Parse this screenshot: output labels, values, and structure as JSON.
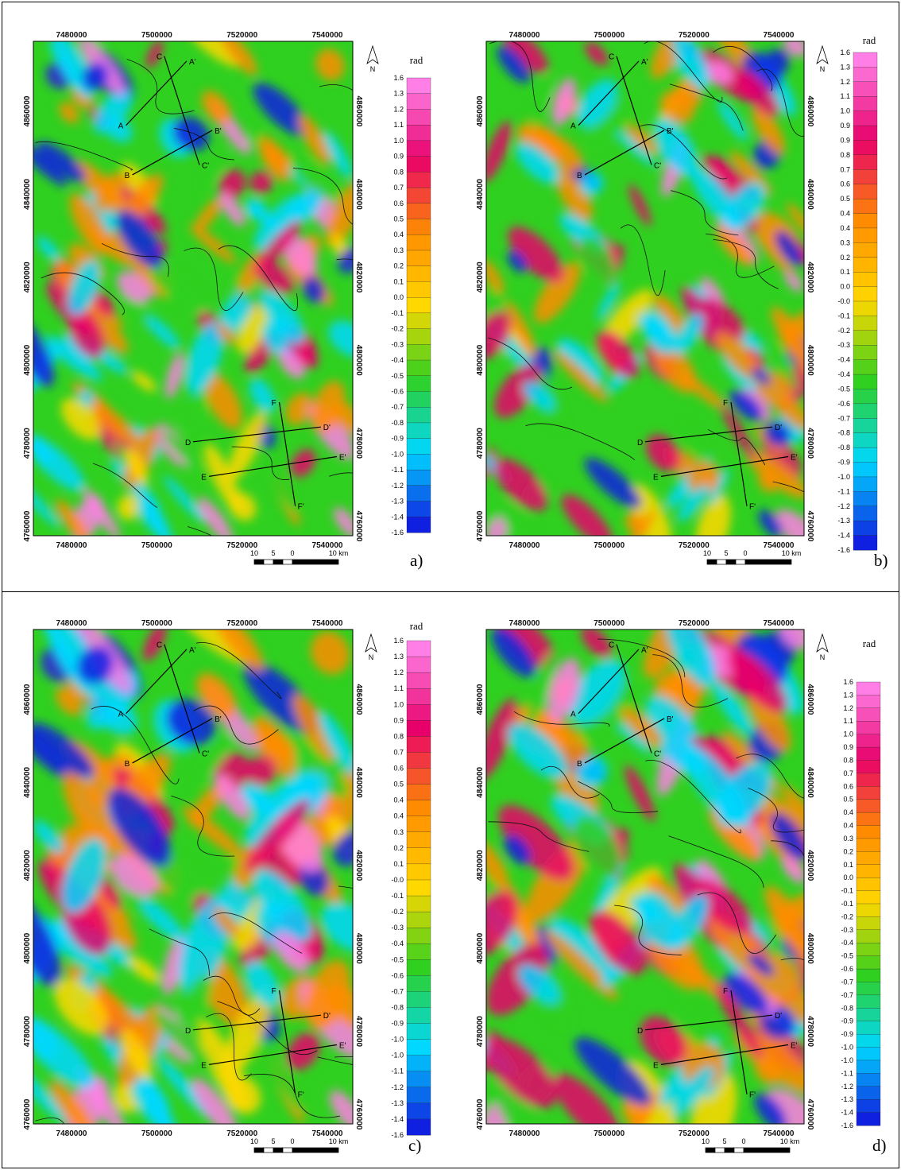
{
  "figure": {
    "panels": [
      {
        "letter": "a)",
        "legend_labels": [
          "1.6",
          "1.3",
          "1.2",
          "1.1",
          "1.0",
          "0.9",
          "0.8",
          "0.7",
          "0.6",
          "0.5",
          "0.4",
          "0.3",
          "0.2",
          "0.1",
          "0.0",
          "-0.1",
          "-0.2",
          "-0.3",
          "-0.4",
          "-0.5",
          "-0.6",
          "-0.7",
          "-0.8",
          "-0.9",
          "-1.0",
          "-1.1",
          "-1.2",
          "-1.3",
          "-1.4",
          "-1.6"
        ]
      },
      {
        "letter": "b)",
        "legend_labels": [
          "1.6",
          "1.3",
          "1.2",
          "1.1",
          "1.0",
          "0.9",
          "0.9",
          "0.8",
          "0.7",
          "0.6",
          "0.5",
          "0.4",
          "0.4",
          "0.3",
          "0.2",
          "0.1",
          "0.0",
          "-0.0",
          "-0.1",
          "-0.2",
          "-0.3",
          "-0.4",
          "-0.4",
          "-0.5",
          "-0.6",
          "-0.7",
          "-0.8",
          "-0.8",
          "-0.9",
          "-1.0",
          "-1.1",
          "-1.2",
          "-1.3",
          "-1.4",
          "-1.6"
        ]
      },
      {
        "letter": "c)",
        "legend_labels": [
          "1.6",
          "1.3",
          "1.2",
          "1.1",
          "1.0",
          "0.9",
          "0.8",
          "0.7",
          "0.6",
          "0.5",
          "0.4",
          "0.4",
          "0.3",
          "0.2",
          "0.1",
          "-0.0",
          "-0.1",
          "-0.2",
          "-0.3",
          "-0.4",
          "-0.5",
          "-0.6",
          "-0.7",
          "-0.8",
          "-0.9",
          "-1.0",
          "-1.0",
          "-1.1",
          "-1.2",
          "-1.3",
          "-1.4",
          "-1.6"
        ]
      },
      {
        "letter": "d)",
        "legend_labels": [
          "1.6",
          "1.3",
          "1.2",
          "1.1",
          "1.0",
          "0.9",
          "0.8",
          "0.7",
          "0.6",
          "0.5",
          "0.4",
          "0.4",
          "0.3",
          "0.2",
          "0.1",
          "0.0",
          "-0.1",
          "-0.1",
          "-0.2",
          "-0.3",
          "-0.4",
          "-0.5",
          "-0.6",
          "-0.7",
          "-0.7",
          "-0.8",
          "-0.9",
          "-0.9",
          "-1.0",
          "-1.0",
          "-1.1",
          "-1.2",
          "-1.3",
          "-1.4",
          "-1.6"
        ]
      }
    ],
    "x_ticks": [
      "7480000",
      "7500000",
      "7520000",
      "7540000"
    ],
    "y_ticks": [
      "4860000",
      "4840000",
      "4820000",
      "4800000",
      "4780000",
      "4760000"
    ],
    "unit": "rad",
    "north_label": "N",
    "scale_labels": [
      "10",
      "5",
      "0",
      "10 km"
    ],
    "profiles": [
      {
        "start": "A",
        "end": "A'"
      },
      {
        "start": "B",
        "end": "B'"
      },
      {
        "start": "C",
        "end": "C'"
      },
      {
        "start": "D",
        "end": "D'"
      },
      {
        "start": "E",
        "end": "E'"
      },
      {
        "start": "F",
        "end": "F'"
      }
    ],
    "colors": {
      "max": "#ff7fe6",
      "high": "#e8006a",
      "mid_high": "#ff8c00",
      "zero": "#ffd800",
      "mid_low": "#30d020",
      "low": "#00d8ff",
      "min": "#1020e0"
    }
  }
}
